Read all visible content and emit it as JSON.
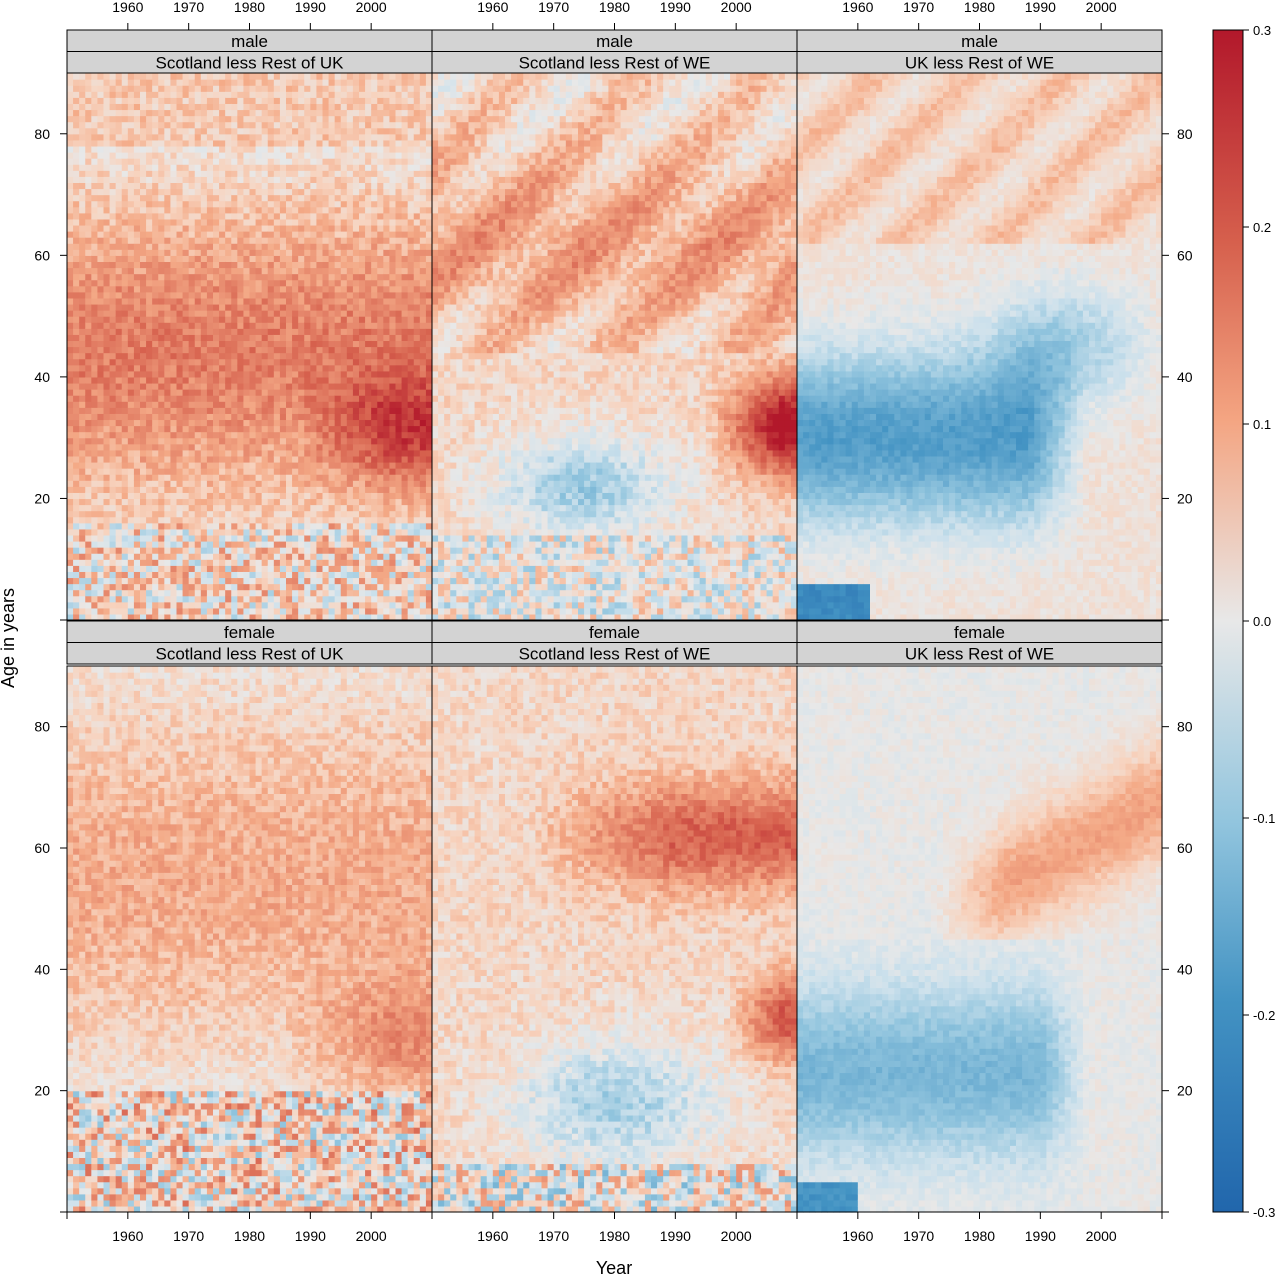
{
  "chart_data": {
    "type": "heatmap",
    "xlabel": "Year",
    "ylabel": "Age in years",
    "x_ticks": [
      1960,
      1970,
      1980,
      1990,
      2000
    ],
    "y_ticks": [
      20,
      40,
      60,
      80
    ],
    "xlim": [
      1950,
      2010
    ],
    "ylim": [
      0,
      90
    ],
    "colorbar": {
      "min": -0.3,
      "max": 0.3,
      "ticks": [
        "0.3",
        "0.2",
        "0.1",
        "0.0",
        "-0.1",
        "-0.2",
        "-0.3"
      ],
      "low_color": "#2166ac",
      "mid_color": "#e8e8e8",
      "high_color": "#b2182b"
    },
    "panels": [
      {
        "sex": "male",
        "comparison": "Scotland less Rest of UK",
        "pattern": "broadly positive (~0.1–0.15) across ages 15–75, strongest (~0.25–0.3) at ages 20–40 after 1995; noisy near zero below age 15"
      },
      {
        "sex": "male",
        "comparison": "Scotland less Rest of WE",
        "pattern": "mildly positive (~0.1) above age 45 with cohort diagonals; negative (~-0.1) at ages 15–35 in 1960–1985; strong positive (~0.3) at ages 25–40 after 2000"
      },
      {
        "sex": "male",
        "comparison": "UK less Rest of WE",
        "pattern": "strongly negative (~-0.15) at ages 15–60 across 1950–1995; slightly positive above age 60; near zero elsewhere"
      },
      {
        "sex": "female",
        "comparison": "Scotland less Rest of UK",
        "pattern": "positive (~0.1–0.15) across most ages; stronger (~0.2) at ages 15–35 after 1990; mixed near zero below age 20"
      },
      {
        "sex": "female",
        "comparison": "Scotland less Rest of WE",
        "pattern": "positive cohort band (~0.15–0.2) at ages 50–75 after 1975; negative (~-0.1) at ages 5–30 in 1965–1995; positive at ages 25–40 after 2000"
      },
      {
        "sex": "female",
        "comparison": "UK less Rest of WE",
        "pattern": "negative (~-0.1) at ages 10–40 across 1950–1995; positive diagonal band (~0.1) at ages 55–80 after 1975; near zero elsewhere"
      }
    ]
  }
}
